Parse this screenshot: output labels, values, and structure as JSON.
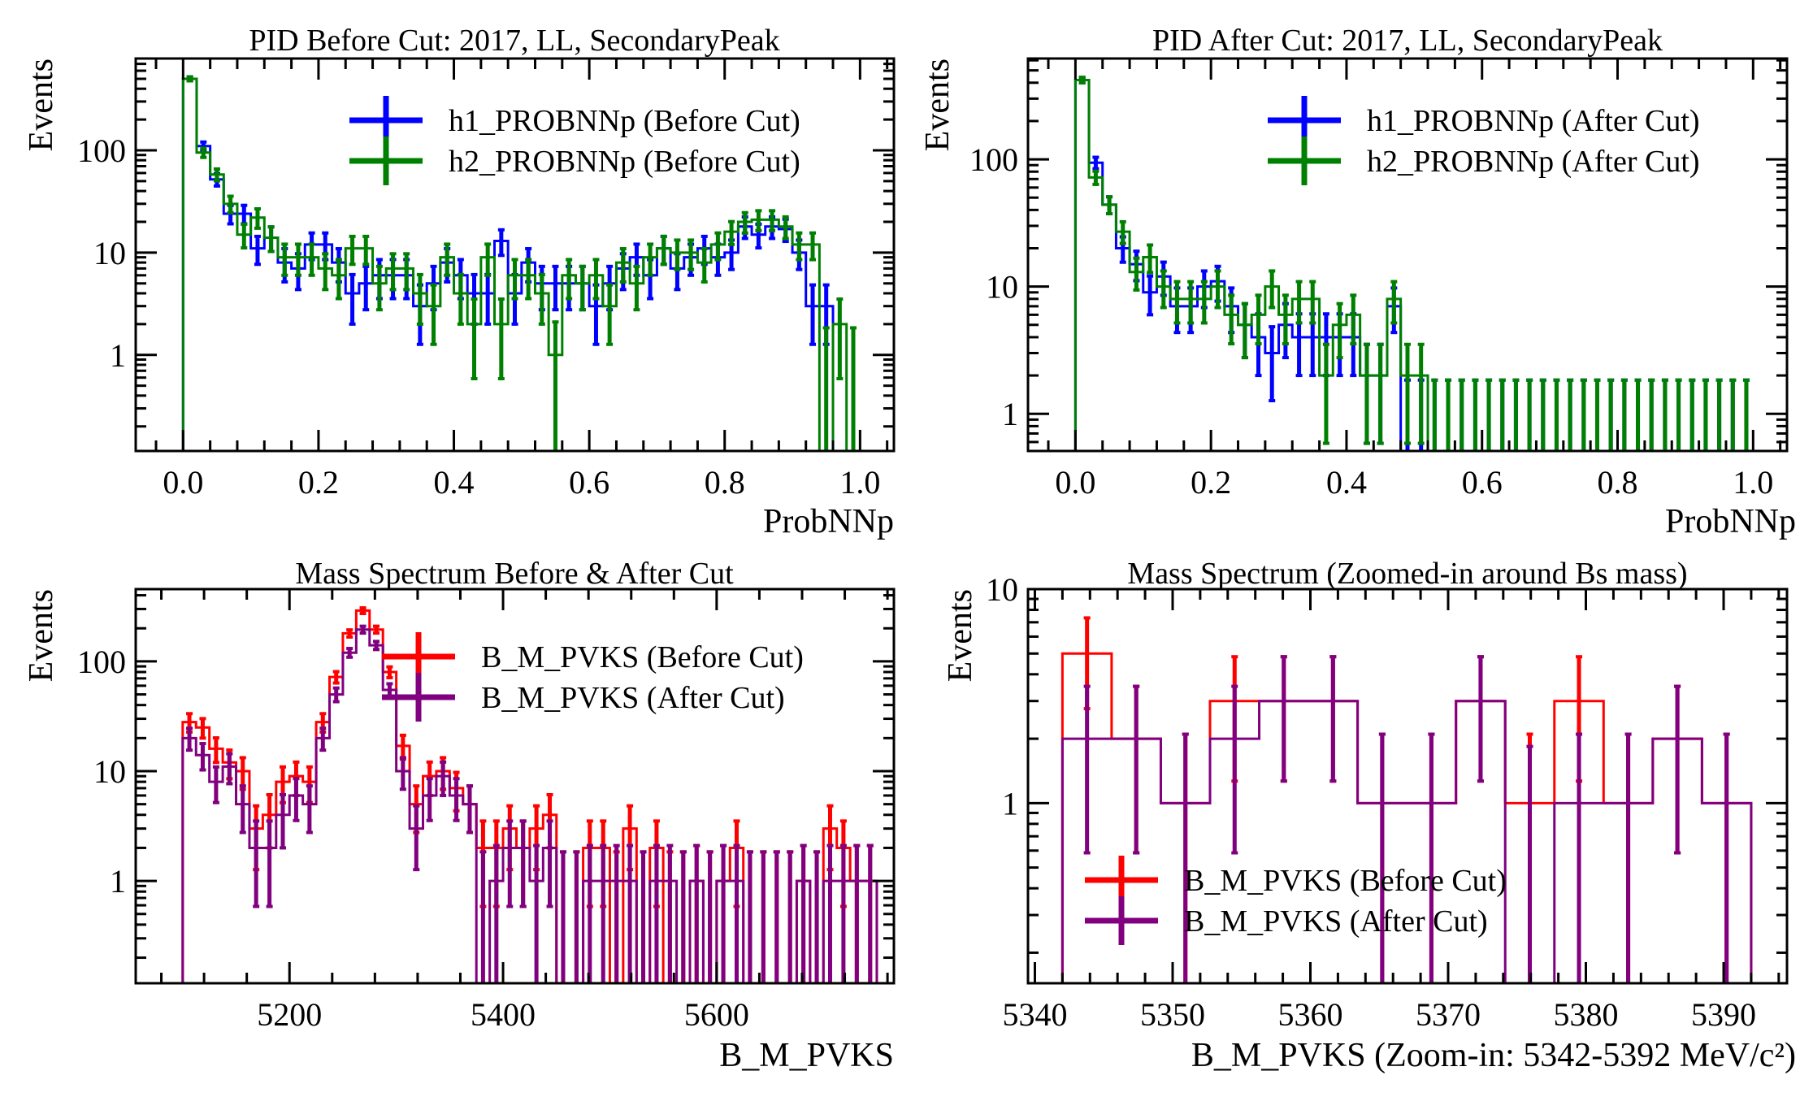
{
  "colors": {
    "h1": "#0000ff",
    "h2": "#008000",
    "before": "#ff0000",
    "after": "#800080",
    "axis": "#000000"
  },
  "chart_data": [
    {
      "id": "pid-before",
      "type": "histogram",
      "title": "PID Before Cut: 2017, LL, SecondaryPeak",
      "xlabel": "ProbNNp",
      "ylabel": "Events",
      "yscale": "log",
      "xlim": [
        -0.07,
        1.05
      ],
      "ylim": [
        0.115,
        790
      ],
      "xticks": [
        0.0,
        0.2,
        0.4,
        0.6,
        0.8,
        1.0
      ],
      "xticklabels": [
        "0.0",
        "0.2",
        "0.4",
        "0.6",
        "0.8",
        "1.0"
      ],
      "yticks": [
        1,
        10,
        100
      ],
      "yticklabels": [
        "1",
        "10",
        "100"
      ],
      "legend_position": "top-right",
      "bin_edges_start": 0.0,
      "bin_width": 0.02,
      "series": [
        {
          "name": "h1_PROBNNp (Before Cut)",
          "color_key": "h1",
          "values": [
            500,
            110,
            52,
            24,
            24,
            11,
            14,
            8,
            7,
            12,
            12,
            8,
            4,
            5,
            6,
            6,
            6,
            3,
            5,
            8,
            6,
            4,
            4,
            13,
            4,
            8,
            5,
            5,
            5,
            5,
            3,
            5,
            7,
            9,
            6,
            11,
            7,
            9,
            11,
            9,
            10,
            18,
            15,
            18,
            17,
            10,
            3,
            3,
            0,
            0
          ]
        },
        {
          "name": "h2_PROBNNp (Before Cut)",
          "color_key": "h2",
          "values": [
            500,
            95,
            58,
            30,
            15,
            22,
            14,
            9,
            9,
            9,
            7,
            6,
            11,
            11,
            5,
            7,
            7,
            4,
            3,
            9,
            4,
            2,
            9,
            2,
            6,
            6,
            4,
            1,
            6,
            5,
            6,
            3,
            8,
            5,
            9,
            11,
            10,
            10,
            8,
            12,
            16,
            20,
            21,
            21,
            18,
            12,
            12,
            0,
            2,
            0
          ]
        }
      ]
    },
    {
      "id": "pid-after",
      "type": "histogram",
      "title": "PID After Cut: 2017, LL, SecondaryPeak",
      "xlabel": "ProbNNp",
      "ylabel": "Events",
      "yscale": "log",
      "xlim": [
        -0.07,
        1.05
      ],
      "ylim": [
        0.51,
        620
      ],
      "xticks": [
        0.0,
        0.2,
        0.4,
        0.6,
        0.8,
        1.0
      ],
      "xticklabels": [
        "0.0",
        "0.2",
        "0.4",
        "0.6",
        "0.8",
        "1.0"
      ],
      "yticks": [
        1,
        10,
        100
      ],
      "yticklabels": [
        "1",
        "10",
        "100"
      ],
      "legend_position": "top-right",
      "bin_edges_start": 0.0,
      "bin_width": 0.02,
      "series": [
        {
          "name": "h1_PROBNNp (After Cut)",
          "color_key": "h1",
          "values": [
            420,
            94,
            44,
            20,
            15,
            9,
            12,
            7,
            7,
            10,
            11,
            7,
            5,
            4,
            3,
            5,
            4,
            4,
            4,
            4,
            4,
            2,
            2,
            7,
            0,
            0,
            0,
            0,
            0,
            0,
            0,
            0,
            0,
            0,
            0,
            0,
            0,
            0,
            0,
            0,
            0,
            0,
            0,
            0,
            0,
            0,
            0,
            0,
            0,
            0
          ]
        },
        {
          "name": "h2_PROBNNp (After Cut)",
          "color_key": "h2",
          "values": [
            420,
            72,
            44,
            27,
            13,
            17,
            10,
            8,
            8,
            8,
            10,
            6,
            5,
            6,
            10,
            6,
            8,
            8,
            2,
            5,
            6,
            2,
            2,
            8,
            2,
            2,
            0,
            0,
            0,
            0,
            0,
            0,
            0,
            0,
            0,
            0,
            0,
            0,
            0,
            0,
            0,
            0,
            0,
            0,
            0,
            0,
            0,
            0,
            0,
            0
          ]
        }
      ]
    },
    {
      "id": "mass-full",
      "type": "histogram",
      "title": "Mass Spectrum Before & After Cut",
      "xlabel": "B_M_PVKS",
      "ylabel": "Events",
      "yscale": "log",
      "xlim": [
        5056,
        5766
      ],
      "ylim": [
        0.117,
        455
      ],
      "xticks": [
        5200,
        5400,
        5600
      ],
      "xticklabels": [
        "5200",
        "5400",
        "5600"
      ],
      "yticks": [
        1,
        10,
        100
      ],
      "yticklabels": [
        "1",
        "10",
        "100"
      ],
      "legend_position": "top-right",
      "bin_edges_start": 5100,
      "bin_width": 12.5,
      "series": [
        {
          "name": "B_M_PVKS (Before Cut)",
          "color_key": "before",
          "values": [
            28,
            25,
            16,
            12,
            10,
            3,
            4,
            8,
            9,
            8,
            28,
            72,
            180,
            290,
            195,
            80,
            17,
            5,
            9,
            10,
            7,
            5,
            2,
            2,
            3,
            2,
            3,
            4,
            0,
            0,
            2,
            2,
            0,
            3,
            0,
            2,
            0,
            0,
            1,
            0,
            1,
            2,
            0,
            0,
            0,
            0,
            1,
            0,
            3,
            2,
            1,
            1
          ]
        },
        {
          "name": "B_M_PVKS (After Cut)",
          "color_key": "after",
          "values": [
            20,
            14,
            8,
            11,
            5,
            2,
            2,
            4,
            6,
            5,
            20,
            50,
            120,
            195,
            140,
            55,
            10,
            3,
            6,
            9,
            6,
            5,
            0,
            1,
            2,
            2,
            1,
            2,
            0,
            0,
            1,
            1,
            1,
            1,
            0,
            1,
            1,
            0,
            1,
            0,
            1,
            1,
            0,
            0,
            0,
            0,
            1,
            0,
            1,
            1,
            1,
            1
          ]
        }
      ]
    },
    {
      "id": "mass-zoom",
      "type": "histogram",
      "title": "Mass Spectrum (Zoomed-in around Bs mass)",
      "xlabel": "B_M_PVKS (Zoom-in: 5342-5392 MeV/c²)",
      "ylabel": "Events",
      "yscale": "log",
      "xlim": [
        5339.5,
        5394.6
      ],
      "ylim": [
        0.144,
        10
      ],
      "xticks": [
        5340,
        5350,
        5360,
        5370,
        5380,
        5390
      ],
      "xticklabels": [
        "5340",
        "5350",
        "5360",
        "5370",
        "5380",
        "5390"
      ],
      "yticks": [
        1,
        10
      ],
      "yticklabels": [
        "1",
        "10"
      ],
      "legend_position": "bottom-left",
      "bin_edges_start": 5342,
      "bin_width": 3.5714,
      "series": [
        {
          "name": "B_M_PVKS (Before Cut)",
          "color_key": "before",
          "values": [
            5,
            2,
            1,
            3,
            3,
            3,
            1,
            1,
            3,
            1,
            3,
            1,
            2,
            1
          ]
        },
        {
          "name": "B_M_PVKS (After Cut)",
          "color_key": "after",
          "values": [
            2,
            2,
            1,
            2,
            3,
            3,
            1,
            1,
            3,
            0,
            1,
            1,
            2,
            1
          ]
        }
      ]
    }
  ]
}
